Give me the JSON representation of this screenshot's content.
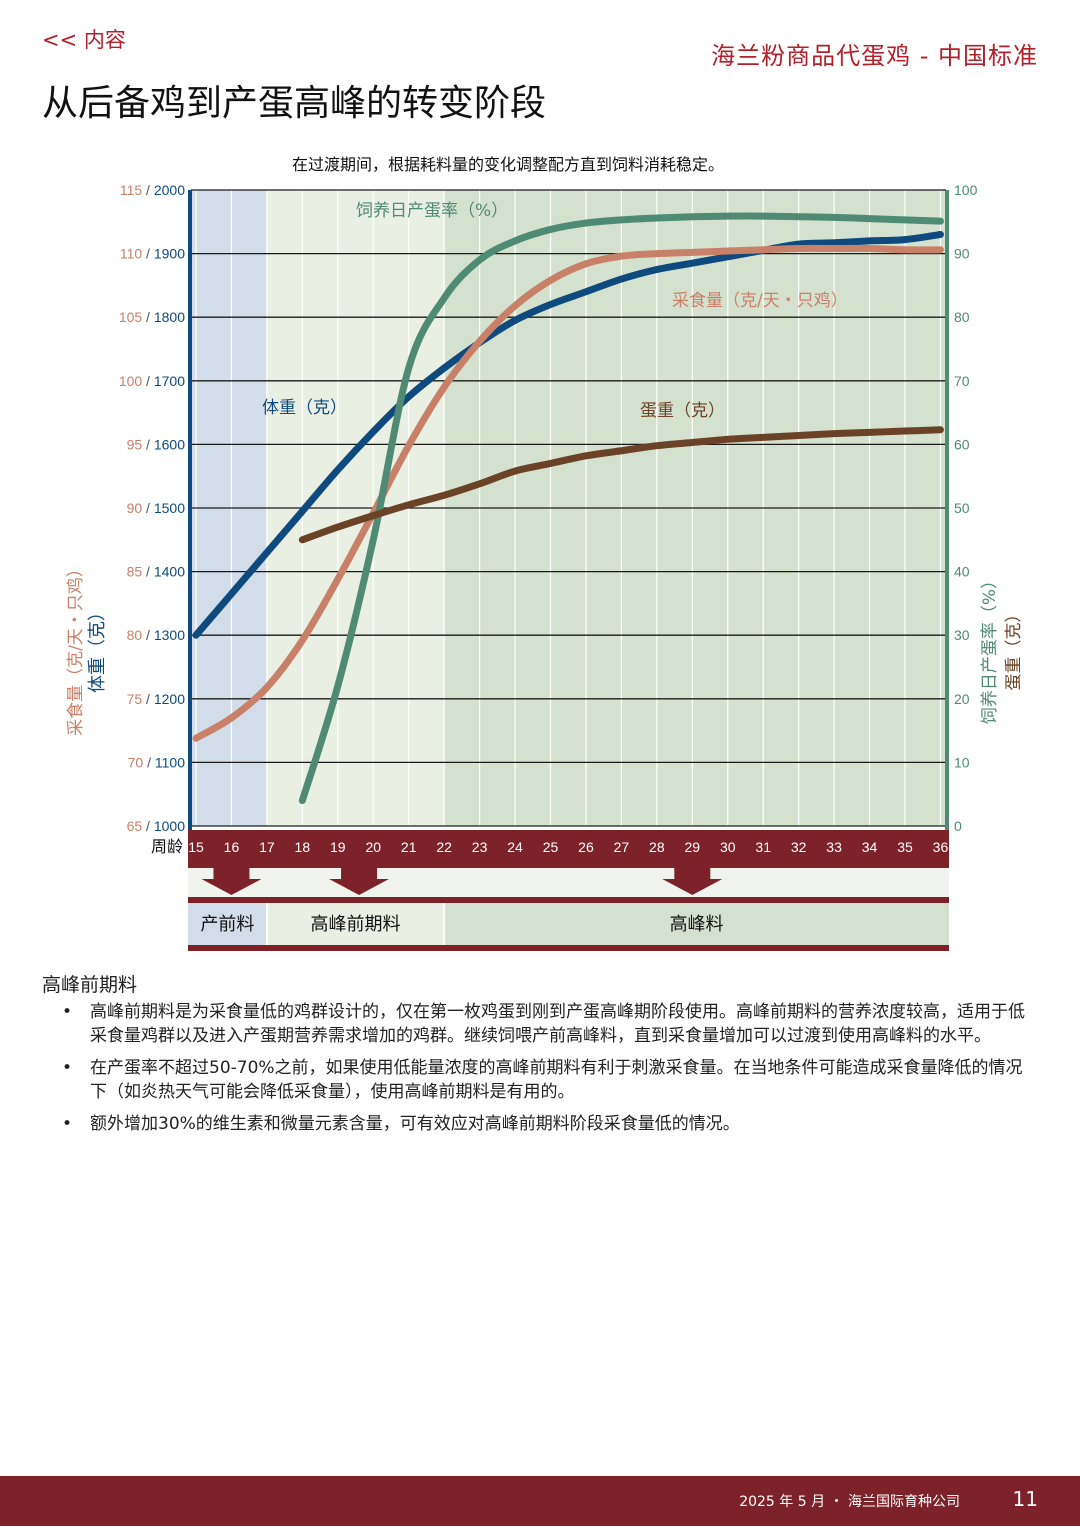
{
  "header": {
    "back_link": "<< 内容",
    "doc_title": "海兰粉商品代蛋鸡 - 中国标准",
    "page_title": "从后备鸡到产蛋高峰的转变阶段"
  },
  "chart_data": {
    "type": "line",
    "title": "在过渡期间，根据耗料量的变化调整配方直到饲料消耗稳定。",
    "xlabel": "周龄",
    "x": [
      15,
      16,
      17,
      18,
      19,
      20,
      21,
      22,
      23,
      24,
      25,
      26,
      27,
      28,
      29,
      30,
      31,
      32,
      33,
      34,
      35,
      36
    ],
    "xlim": [
      15,
      36
    ],
    "left_axis": {
      "label_feed": "采食量（克/天・只鸡）",
      "label_weight": "体重（克）",
      "ticks_feed": [
        "65",
        "70",
        "75",
        "80",
        "85",
        "90",
        "95",
        "100",
        "105",
        "110",
        "115"
      ],
      "ticks_weight": [
        "1000",
        "1100",
        "1200",
        "1300",
        "1400",
        "1500",
        "1600",
        "1700",
        "1800",
        "1900",
        "2000"
      ],
      "ylim_feed": [
        65,
        115
      ],
      "ylim_weight": [
        1000,
        2000
      ]
    },
    "right_axis": {
      "label_production": "饲养日产蛋率（%）",
      "label_eggweight": "蛋重（克）",
      "ticks": [
        "0",
        "10",
        "20",
        "30",
        "40",
        "50",
        "60",
        "70",
        "80",
        "90",
        "100"
      ],
      "ylim": [
        0,
        100
      ]
    },
    "series": [
      {
        "name": "体重（克）",
        "axis": "weight",
        "color": "#0e4a7e",
        "points": [
          [
            15,
            1300
          ],
          [
            16,
            1365
          ],
          [
            17,
            1430
          ],
          [
            18,
            1495
          ],
          [
            19,
            1560
          ],
          [
            20,
            1620
          ],
          [
            21,
            1675
          ],
          [
            22,
            1720
          ],
          [
            23,
            1760
          ],
          [
            24,
            1795
          ],
          [
            25,
            1820
          ],
          [
            26,
            1840
          ],
          [
            27,
            1860
          ],
          [
            28,
            1875
          ],
          [
            29,
            1885
          ],
          [
            30,
            1895
          ],
          [
            31,
            1905
          ],
          [
            32,
            1915
          ],
          [
            33,
            1917
          ],
          [
            34,
            1920
          ],
          [
            35,
            1922
          ],
          [
            36,
            1930
          ]
        ]
      },
      {
        "name": "采食量（克/天・只鸡）",
        "axis": "feed",
        "color": "#c98068",
        "points": [
          [
            15,
            71.9
          ],
          [
            16,
            73.5
          ],
          [
            17,
            75.9
          ],
          [
            18,
            79.6
          ],
          [
            19,
            84.4
          ],
          [
            20,
            89.6
          ],
          [
            21,
            94.9
          ],
          [
            22,
            99.5
          ],
          [
            23,
            103.1
          ],
          [
            24,
            105.9
          ],
          [
            25,
            107.9
          ],
          [
            26,
            109.2
          ],
          [
            27,
            109.8
          ],
          [
            28,
            110
          ],
          [
            29,
            110.1
          ],
          [
            30,
            110.2
          ],
          [
            31,
            110.3
          ],
          [
            32,
            110.4
          ],
          [
            33,
            110.4
          ],
          [
            34,
            110.4
          ],
          [
            35,
            110.3
          ],
          [
            36,
            110.3
          ]
        ]
      },
      {
        "name": "饲养日产蛋率（%）",
        "axis": "percent",
        "color": "#4e8a74",
        "points": [
          [
            18,
            4
          ],
          [
            19,
            22
          ],
          [
            20,
            45
          ],
          [
            21,
            72
          ],
          [
            22,
            83
          ],
          [
            23,
            89
          ],
          [
            24,
            92
          ],
          [
            25,
            93.8
          ],
          [
            26,
            94.8
          ],
          [
            27,
            95.3
          ],
          [
            28,
            95.6
          ],
          [
            29,
            95.8
          ],
          [
            30,
            95.9
          ],
          [
            31,
            95.9
          ],
          [
            32,
            95.8
          ],
          [
            33,
            95.7
          ],
          [
            34,
            95.5
          ],
          [
            35,
            95.3
          ],
          [
            36,
            95.1
          ]
        ]
      },
      {
        "name": "蛋重（克）",
        "axis": "percent",
        "color": "#6b4226",
        "points": [
          [
            18,
            45
          ],
          [
            19,
            47
          ],
          [
            20,
            48.8
          ],
          [
            21,
            50.5
          ],
          [
            22,
            52
          ],
          [
            23,
            53.8
          ],
          [
            24,
            55.8
          ],
          [
            25,
            57
          ],
          [
            26,
            58.2
          ],
          [
            27,
            59
          ],
          [
            28,
            59.8
          ],
          [
            29,
            60.3
          ],
          [
            30,
            60.8
          ],
          [
            31,
            61.1
          ],
          [
            32,
            61.4
          ],
          [
            33,
            61.7
          ],
          [
            34,
            61.9
          ],
          [
            35,
            62.1
          ],
          [
            36,
            62.3
          ]
        ]
      }
    ],
    "phases": [
      {
        "label": "产前料",
        "start": 14.75,
        "end": 17,
        "color": "#d3dde9"
      },
      {
        "label": "高峰前期料",
        "start": 17,
        "end": 22,
        "color": "#e9f0e3"
      },
      {
        "label": "高峰料",
        "start": 22,
        "end": 36.25,
        "color": "#d4e1cf"
      }
    ],
    "grid": true
  },
  "body": {
    "section_heading": "高峰前期料",
    "bullets": [
      "高峰前期料是为采食量低的鸡群设计的，仅在第一枚鸡蛋到刚到产蛋高峰期阶段使用。高峰前期料的营养浓度较高，适用于低采食量鸡群以及进入产蛋期营养需求增加的鸡群。继续饲喂产前高峰料，直到采食量增加可以过渡到使用高峰料的水平。",
      "在产蛋率不超过50-70%之前，如果使用低能量浓度的高峰前期料有利于刺激采食量。在当地条件可能造成采食量降低的情况下（如炎热天气可能会降低采食量），使用高峰前期料是有用的。",
      "额外增加30%的维生素和微量元素含量，可有效应对高峰前期料阶段采食量低的情况。"
    ]
  },
  "footer": {
    "info": "2025 年 5 月 ・ 海兰国际育种公司",
    "page_number": "11"
  },
  "colors": {
    "brand": "#b2202a",
    "band": "#7d2229",
    "weight": "#0e4a7e",
    "feed": "#c98068",
    "production": "#4e8a74",
    "eggweight": "#6b4226"
  }
}
